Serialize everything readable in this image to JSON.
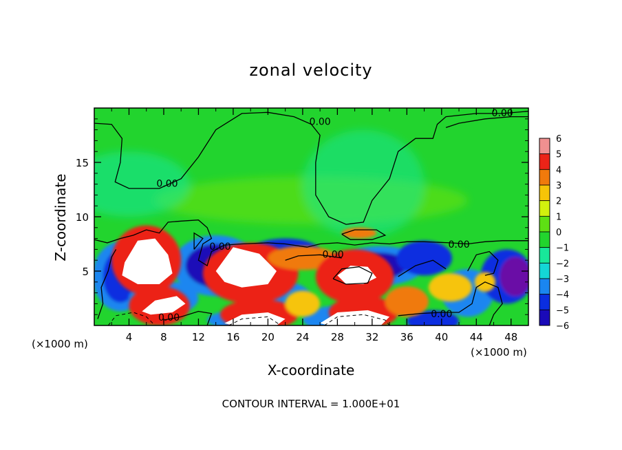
{
  "chart_data": {
    "type": "heatmap",
    "title": "zonal velocity",
    "xlabel": "X-coordinate",
    "ylabel": "Z-coordinate",
    "x_unit_label": "(×1000 m)",
    "xlim": [
      0,
      50
    ],
    "ylim": [
      0,
      20
    ],
    "x_ticks": [
      4,
      8,
      12,
      16,
      20,
      24,
      28,
      32,
      36,
      40,
      44,
      48
    ],
    "y_ticks": [
      5,
      10,
      15
    ],
    "footer": "CONTOUR INTERVAL = 1.000E+01",
    "colorbar": {
      "levels": [
        -6,
        -5,
        -4,
        -3,
        -2,
        -1,
        0,
        1,
        2,
        3,
        4,
        5,
        6
      ],
      "colors": [
        "#6a0aa6",
        "#1a0ab8",
        "#0a2ee0",
        "#1a86f0",
        "#14d6d6",
        "#18e89a",
        "#22d42e",
        "#5ee014",
        "#d2f00e",
        "#f6c408",
        "#f07a0c",
        "#ec2418",
        "#f09090"
      ]
    },
    "contour_labels": [
      {
        "text": "0.00",
        "x": 47,
        "y": 19.5
      },
      {
        "text": "0.00",
        "x": 26,
        "y": 18.7
      },
      {
        "text": "0.00",
        "x": 8.4,
        "y": 13.0
      },
      {
        "text": "0.00",
        "x": 14.5,
        "y": 7.2
      },
      {
        "text": "0.00",
        "x": 27.5,
        "y": 6.5
      },
      {
        "text": "0.00",
        "x": 42,
        "y": 7.4
      },
      {
        "text": "0.00",
        "x": 8.6,
        "y": 0.7
      },
      {
        "text": "0.00",
        "x": 40,
        "y": 1.0
      }
    ],
    "notes": "Background field ~0 to +1 (green) in the upper domain; strong positive (red/white, >6) and negative (blue/purple) cells below z≈8 km."
  }
}
